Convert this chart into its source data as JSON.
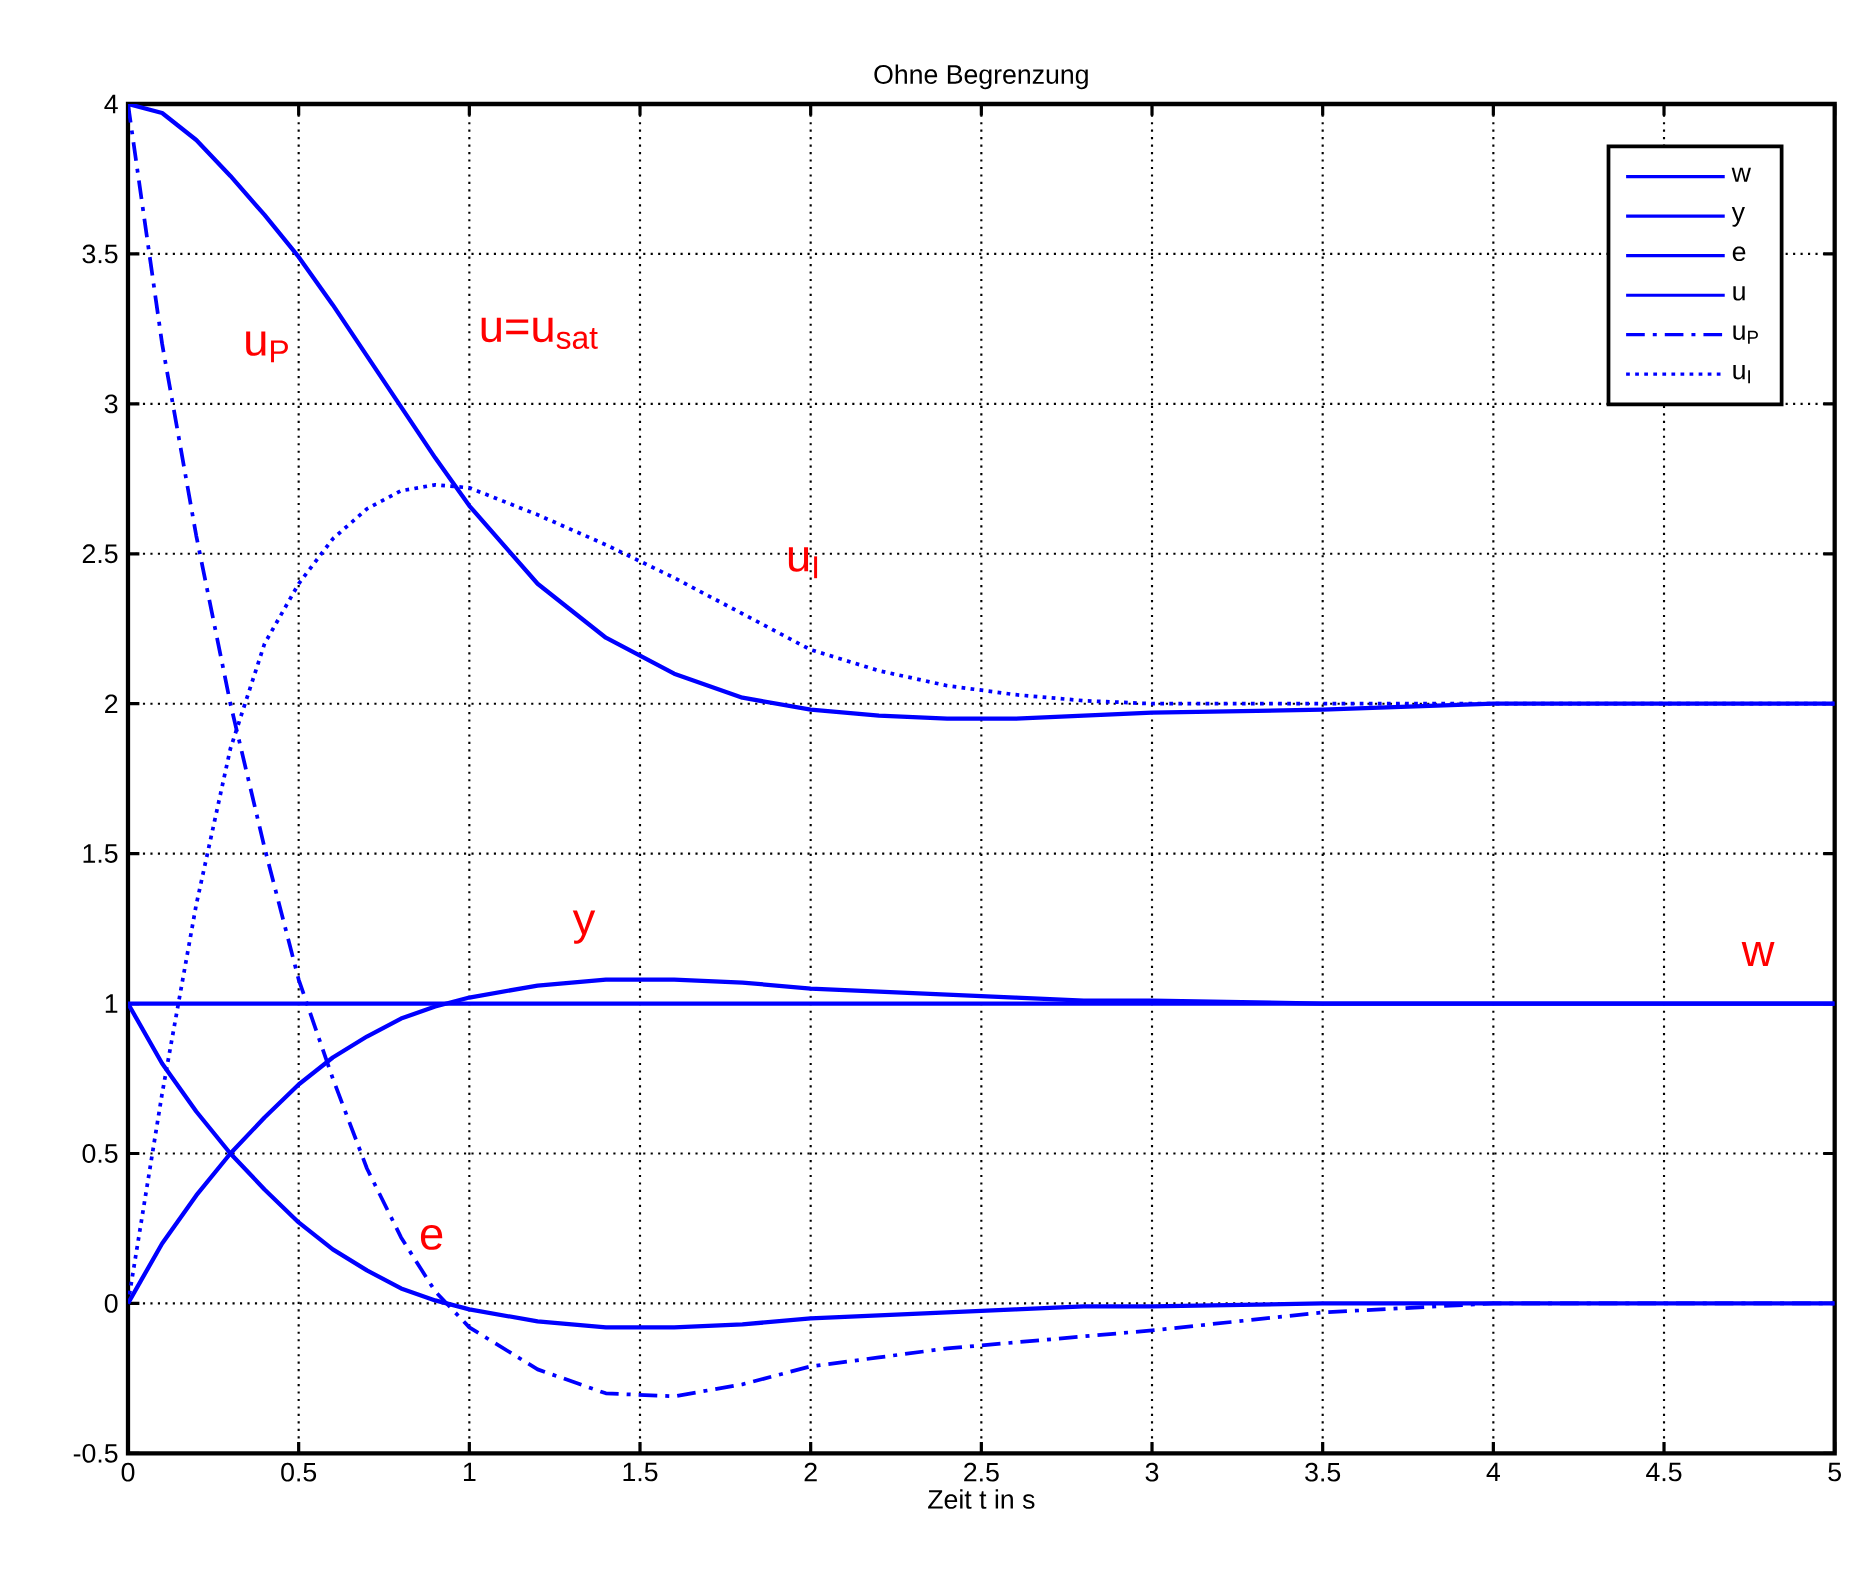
{
  "chart_data": {
    "type": "line",
    "title": "Ohne Begrenzung",
    "xlabel": "Zeit t in s",
    "x": [
      0,
      0.1,
      0.2,
      0.3,
      0.4,
      0.5,
      0.6,
      0.7,
      0.8,
      0.9,
      1.0,
      1.2,
      1.4,
      1.6,
      1.8,
      2.0,
      2.2,
      2.4,
      2.6,
      2.8,
      3.0,
      3.5,
      4.0,
      4.5,
      5.0
    ],
    "series": [
      {
        "name": "w",
        "color": "#0000ff",
        "line_style": "solid",
        "values": [
          1,
          1,
          1,
          1,
          1,
          1,
          1,
          1,
          1,
          1,
          1,
          1,
          1,
          1,
          1,
          1,
          1,
          1,
          1,
          1,
          1,
          1,
          1,
          1,
          1
        ]
      },
      {
        "name": "y",
        "color": "#0000ff",
        "line_style": "solid",
        "values": [
          0,
          0.2,
          0.36,
          0.5,
          0.62,
          0.73,
          0.82,
          0.89,
          0.95,
          0.99,
          1.02,
          1.06,
          1.08,
          1.08,
          1.07,
          1.05,
          1.04,
          1.03,
          1.02,
          1.01,
          1.01,
          1.0,
          1.0,
          1.0,
          1.0
        ]
      },
      {
        "name": "e",
        "color": "#0000ff",
        "line_style": "solid",
        "values": [
          1,
          0.8,
          0.64,
          0.5,
          0.38,
          0.27,
          0.18,
          0.11,
          0.05,
          0.01,
          -0.02,
          -0.06,
          -0.08,
          -0.08,
          -0.07,
          -0.05,
          -0.04,
          -0.03,
          -0.02,
          -0.01,
          -0.01,
          0,
          0,
          0,
          0
        ]
      },
      {
        "name": "u",
        "color": "#0000ff",
        "line_style": "solid",
        "values": [
          4.0,
          3.97,
          3.88,
          3.76,
          3.63,
          3.49,
          3.33,
          3.16,
          2.99,
          2.82,
          2.66,
          2.4,
          2.22,
          2.1,
          2.02,
          1.98,
          1.96,
          1.95,
          1.95,
          1.96,
          1.97,
          1.98,
          2.0,
          2.0,
          2.0
        ]
      },
      {
        "name": "u$_{P}$",
        "color": "#0000ff",
        "line_style": "dashdot",
        "values": [
          4,
          3.2,
          2.56,
          2.0,
          1.52,
          1.08,
          0.75,
          0.45,
          0.22,
          0.04,
          -0.08,
          -0.22,
          -0.3,
          -0.31,
          -0.27,
          -0.21,
          -0.18,
          -0.15,
          -0.13,
          -0.11,
          -0.09,
          -0.03,
          0,
          0,
          0
        ]
      },
      {
        "name": "u$_{I}$",
        "color": "#0000ff",
        "line_style": "dotted",
        "values": [
          0,
          0.7,
          1.33,
          1.85,
          2.2,
          2.4,
          2.55,
          2.65,
          2.71,
          2.73,
          2.72,
          2.63,
          2.53,
          2.42,
          2.3,
          2.18,
          2.11,
          2.06,
          2.03,
          2.01,
          2.0,
          2.0,
          2.0,
          2.0,
          2.0
        ]
      }
    ],
    "annotations": [
      "u$_{P}$",
      "u=u$_{sat}$",
      "u$_{I}$",
      "y",
      "w",
      "e"
    ],
    "xlim": [
      0,
      5
    ],
    "ylim": [
      -0.5,
      4
    ],
    "xticks": [
      0,
      0.5,
      1,
      1.5,
      2,
      2.5,
      3,
      3.5,
      4,
      4.5,
      5
    ],
    "yticks": [
      -0.5,
      0,
      0.5,
      1,
      1.5,
      2,
      2.5,
      3,
      3.5,
      4
    ],
    "grid": true,
    "legend": "top right",
    "marker": "none"
  }
}
